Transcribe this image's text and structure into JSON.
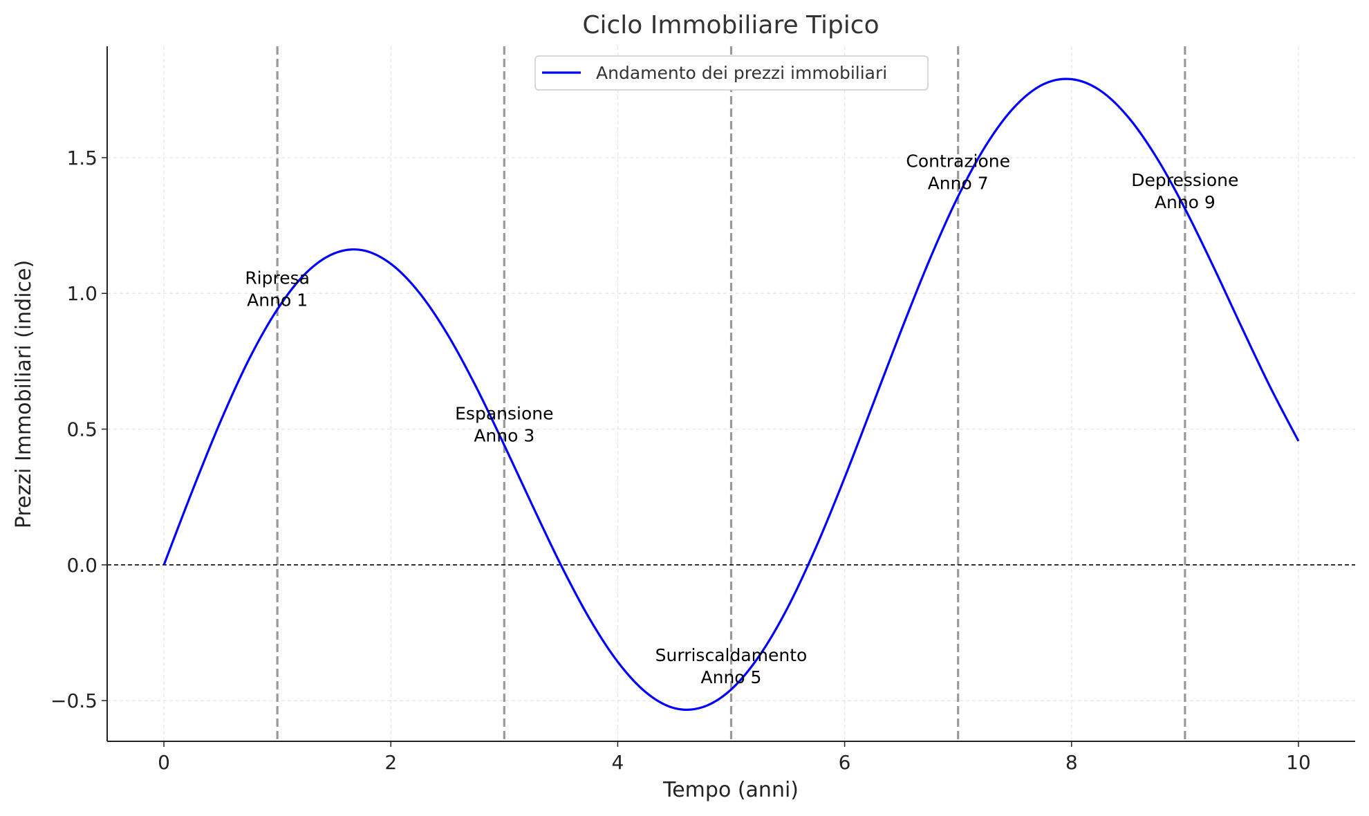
{
  "chart_data": {
    "type": "line",
    "title": "Ciclo Immobiliare Tipico",
    "xlabel": "Tempo (anni)",
    "ylabel": "Prezzi Immobiliari (indice)",
    "xlim": [
      -0.5,
      10.5
    ],
    "ylim": [
      -0.65,
      1.91
    ],
    "xticks": [
      0,
      2,
      4,
      6,
      8,
      10
    ],
    "xtick_labels": [
      "0",
      "2",
      "4",
      "6",
      "8",
      "10"
    ],
    "yticks": [
      -0.5,
      0.0,
      0.5,
      1.0,
      1.5
    ],
    "ytick_labels": [
      "−0.5",
      "0.0",
      "0.5",
      "1.0",
      "1.5"
    ],
    "grid": true,
    "legend_position": "top-center",
    "series": [
      {
        "name": "Andamento dei prezzi immobiliari",
        "color": "#0000ff",
        "x": [
          0,
          0.25,
          0.5,
          0.75,
          1,
          1.25,
          1.5,
          1.75,
          2,
          2.25,
          2.5,
          2.75,
          3,
          3.25,
          3.5,
          3.75,
          4,
          4.25,
          4.5,
          4.75,
          5,
          5.25,
          5.5,
          5.75,
          6,
          6.25,
          6.5,
          6.75,
          7,
          7.25,
          7.5,
          7.75,
          8,
          8.25,
          8.5,
          8.75,
          9,
          9.25,
          9.5,
          9.75,
          10
        ],
        "y": [
          0,
          0.272,
          0.529,
          0.757,
          0.941,
          1.074,
          1.147,
          1.159,
          1.109,
          1.003,
          0.849,
          0.657,
          0.441,
          0.217,
          -0.001,
          -0.197,
          -0.357,
          -0.47,
          -0.528,
          -0.524,
          -0.459,
          -0.334,
          -0.156,
          0.067,
          0.321,
          0.592,
          0.865,
          1.125,
          1.357,
          1.548,
          1.688,
          1.77,
          1.789,
          1.748,
          1.649,
          1.5,
          1.312,
          1.099,
          0.875,
          0.656,
          0.456
        ]
      }
    ],
    "reference_lines": {
      "horizontal": {
        "y": 0,
        "color": "#000000",
        "style": "dashed"
      },
      "vertical": {
        "x": [
          1,
          3,
          5,
          7,
          9
        ],
        "color": "#999999",
        "style": "dashed"
      }
    },
    "annotations": [
      {
        "x": 1,
        "y": 1.02,
        "line1": "Ripresa",
        "line2": "Anno 1"
      },
      {
        "x": 3,
        "y": 0.52,
        "line1": "Espansione",
        "line2": "Anno 3"
      },
      {
        "x": 5,
        "y": -0.37,
        "line1": "Surriscaldamento",
        "line2": "Anno 5"
      },
      {
        "x": 7,
        "y": 1.45,
        "line1": "Contrazione",
        "line2": "Anno 7"
      },
      {
        "x": 9,
        "y": 1.38,
        "line1": "Depressione",
        "line2": "Anno 9"
      }
    ]
  }
}
